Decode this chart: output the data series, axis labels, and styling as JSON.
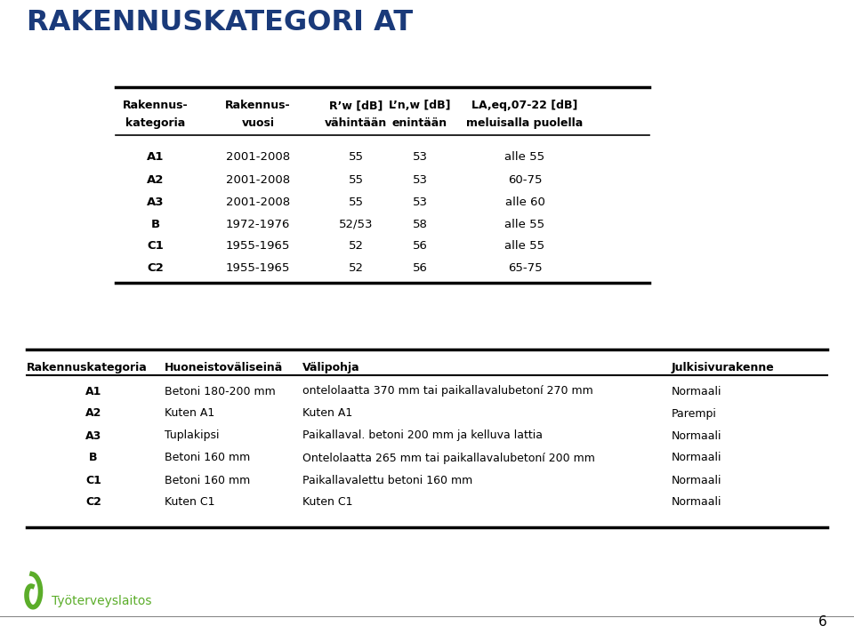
{
  "title": "RAKENNUSKATEGORI AT",
  "title_color": "#1A3A7A",
  "bg_color": "#FFFFFF",
  "page_number": "6",
  "footer_text": "Työterveyslaitos",
  "table1_headers_row1": [
    "Rakennus-",
    "Rakennus-",
    "R’w [dB]",
    "L’n,w [dB]",
    "LA,eq,07-22 [dB]"
  ],
  "table1_headers_row2": [
    "kategoria",
    "vuosi",
    "vähintään",
    "enintään",
    "meluisalla puolella"
  ],
  "table1_rows": [
    [
      "A1",
      "2001-2008",
      "55",
      "53",
      "alle 55"
    ],
    [
      "A2",
      "2001-2008",
      "55",
      "53",
      "60-75"
    ],
    [
      "A3",
      "2001-2008",
      "55",
      "53",
      "alle 60"
    ],
    [
      "B",
      "1972-1976",
      "52/53",
      "58",
      "alle 55"
    ],
    [
      "C1",
      "1955-1965",
      "52",
      "56",
      "alle 55"
    ],
    [
      "C2",
      "1955-1965",
      "52",
      "56",
      "65-75"
    ]
  ],
  "table2_headers": [
    "Rakennuskategoria",
    "Huoneistoväliseinä",
    "Välipohja",
    "Julkisivurakenne"
  ],
  "table2_rows": [
    [
      "A1",
      "Betoni 180-200 mm",
      "ontelolaatta 370 mm tai paikallavalubetoní 270 mm",
      "Normaali"
    ],
    [
      "A2",
      "Kuten A1",
      "Kuten A1",
      "Parempi"
    ],
    [
      "A3",
      "Tuplakipsi",
      "Paikallaval. betoni 200 mm ja kelluva lattia",
      "Normaali"
    ],
    [
      "B",
      "Betoni 160 mm",
      "Ontelolaatta 265 mm tai paikallavalubetoní 200 mm",
      "Normaali"
    ],
    [
      "C1",
      "Betoni 160 mm",
      "Paikallavalettu betoni 160 mm",
      "Normaali"
    ],
    [
      "C2",
      "Kuten C1",
      "Kuten C1",
      "Normaali"
    ]
  ]
}
